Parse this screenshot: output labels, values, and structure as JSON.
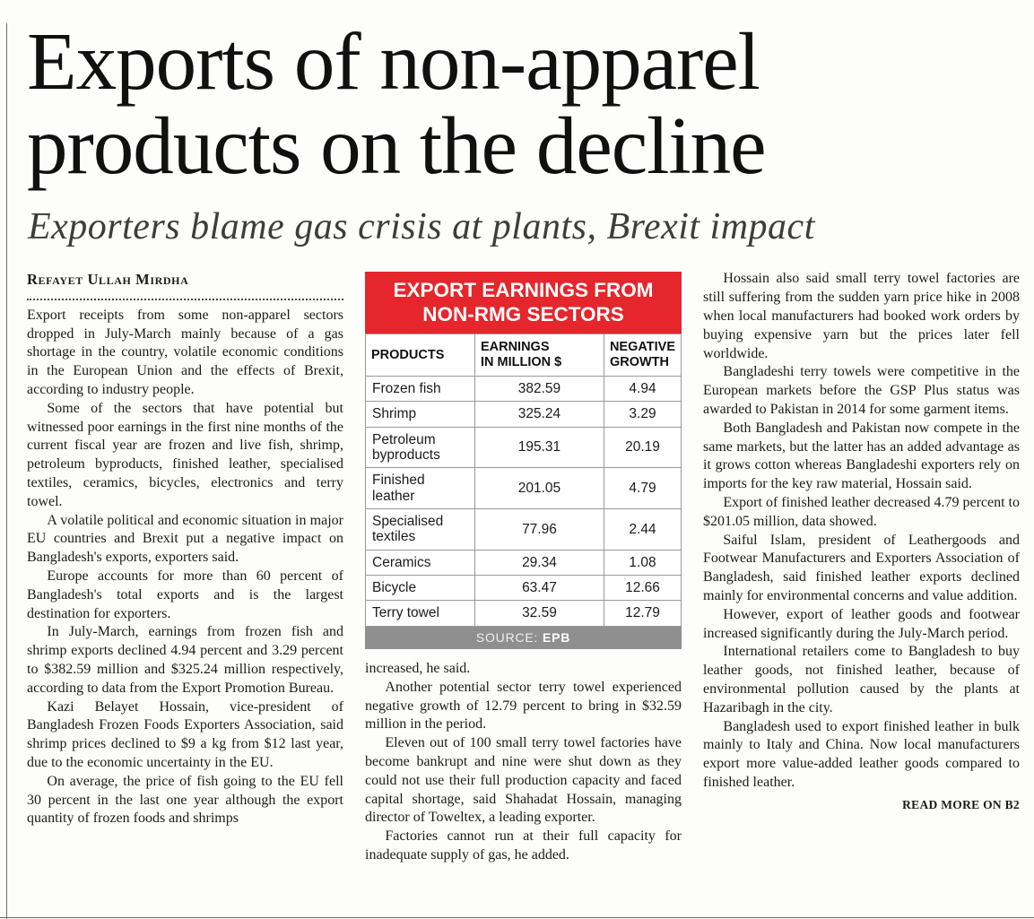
{
  "masthead": {
    "headline_line1": "Exports of non-apparel",
    "headline_line2": "products on the decline",
    "subheadline": "Exporters blame gas crisis at plants, Brexit impact"
  },
  "byline": "Refayet Ullah Mirdha",
  "columns": {
    "col1": {
      "paragraphs": [
        "Export receipts from some non-apparel sectors dropped in July-March mainly because of a gas shortage in the country, volatile economic conditions in the European Union and the effects of Brexit, according to industry people.",
        "Some of the sectors that have potential but witnessed poor earnings in the first nine months of the current fiscal year are frozen and live fish, shrimp, petroleum byproducts, finished leather, specialised textiles, ceramics, bicycles, electronics and terry towel.",
        "A volatile political and economic situation in major EU countries and Brexit put a negative impact on Bangladesh's exports, exporters said.",
        "Europe accounts for more than 60 percent of Bangladesh's total exports and is the largest destination for exporters.",
        "In July-March, earnings from frozen fish and shrimp exports declined 4.94 percent and 3.29 percent to $382.59 million and $325.24 million respectively, according to data from the Export Promotion Bureau.",
        "Kazi Belayet Hossain, vice-president of Bangladesh Frozen Foods Exporters Association, said shrimp prices declined to $9 a kg from $12 last year, due to the economic uncertainty in the EU.",
        "On average, the price of fish going to the EU fell 30 percent in the last one year although the export quantity of frozen foods and shrimps"
      ]
    },
    "col2": {
      "paragraphs": [
        "increased, he said.",
        "Another potential sector terry towel experienced negative growth of 12.79 percent to bring in $32.59 million in the period.",
        "Eleven out of 100 small terry towel factories have become bankrupt and nine were shut down as they could not use their full production capacity and faced capital shortage, said Shahadat Hossain, managing director of Toweltex, a leading exporter.",
        "Factories cannot run at their full capacity for inadequate supply of gas, he added."
      ]
    },
    "col3": {
      "paragraphs": [
        "Hossain also said small terry towel factories are still suffering from the sudden yarn price hike in 2008 when local manufacturers had booked work orders by buying expensive yarn but the prices later fell worldwide.",
        "Bangladeshi terry towels were competitive in the European markets before the GSP Plus status was awarded to Pakistan in 2014 for some garment items.",
        "Both Bangladesh and Pakistan now compete in the same markets, but the latter has an added advantage as it grows cotton whereas Bangladeshi exporters rely on imports for the key raw material, Hossain said.",
        "Export of finished leather decreased 4.79 percent to $201.05 million, data showed.",
        "Saiful Islam, president of Leathergoods and Footwear Manufacturers and Exporters Association of Bangladesh, said finished leather exports declined mainly for environmental concerns and value addition.",
        "However, export of leather goods and footwear increased significantly during the July-March period.",
        "International retailers come to Bangladesh to buy leather goods, not finished leather, because of environmental pollution caused by the plants at Hazaribagh in the city.",
        "Bangladesh used to export finished leather in bulk mainly to Italy and China. Now local manufacturers export more value-added leather goods compared to finished leather."
      ]
    }
  },
  "table": {
    "title_line1": "EXPORT EARNINGS FROM",
    "title_line2": "NON-RMG SECTORS",
    "headers": {
      "product": "PRODUCTS",
      "earnings": "EARNINGS\nIN MILLION $",
      "growth": "NEGATIVE\nGROWTH"
    },
    "rows": [
      {
        "product": "Frozen fish",
        "earnings": "382.59",
        "growth": "4.94"
      },
      {
        "product": "Shrimp",
        "earnings": "325.24",
        "growth": "3.29"
      },
      {
        "product": "Petroleum byproducts",
        "earnings": "195.31",
        "growth": "20.19"
      },
      {
        "product": "Finished leather",
        "earnings": "201.05",
        "growth": "4.79"
      },
      {
        "product": "Specialised textiles",
        "earnings": "77.96",
        "growth": "2.44"
      },
      {
        "product": "Ceramics",
        "earnings": "29.34",
        "growth": "1.08"
      },
      {
        "product": "Bicycle",
        "earnings": "63.47",
        "growth": "12.66"
      },
      {
        "product": "Terry towel",
        "earnings": "32.59",
        "growth": "12.79"
      }
    ],
    "source_label": "SOURCE:",
    "source_value": "EPB"
  },
  "footer": {
    "read_more": "READ MORE ON B2"
  },
  "colors": {
    "accent_red": "#e5262c",
    "source_gray": "#8f8f8f"
  }
}
